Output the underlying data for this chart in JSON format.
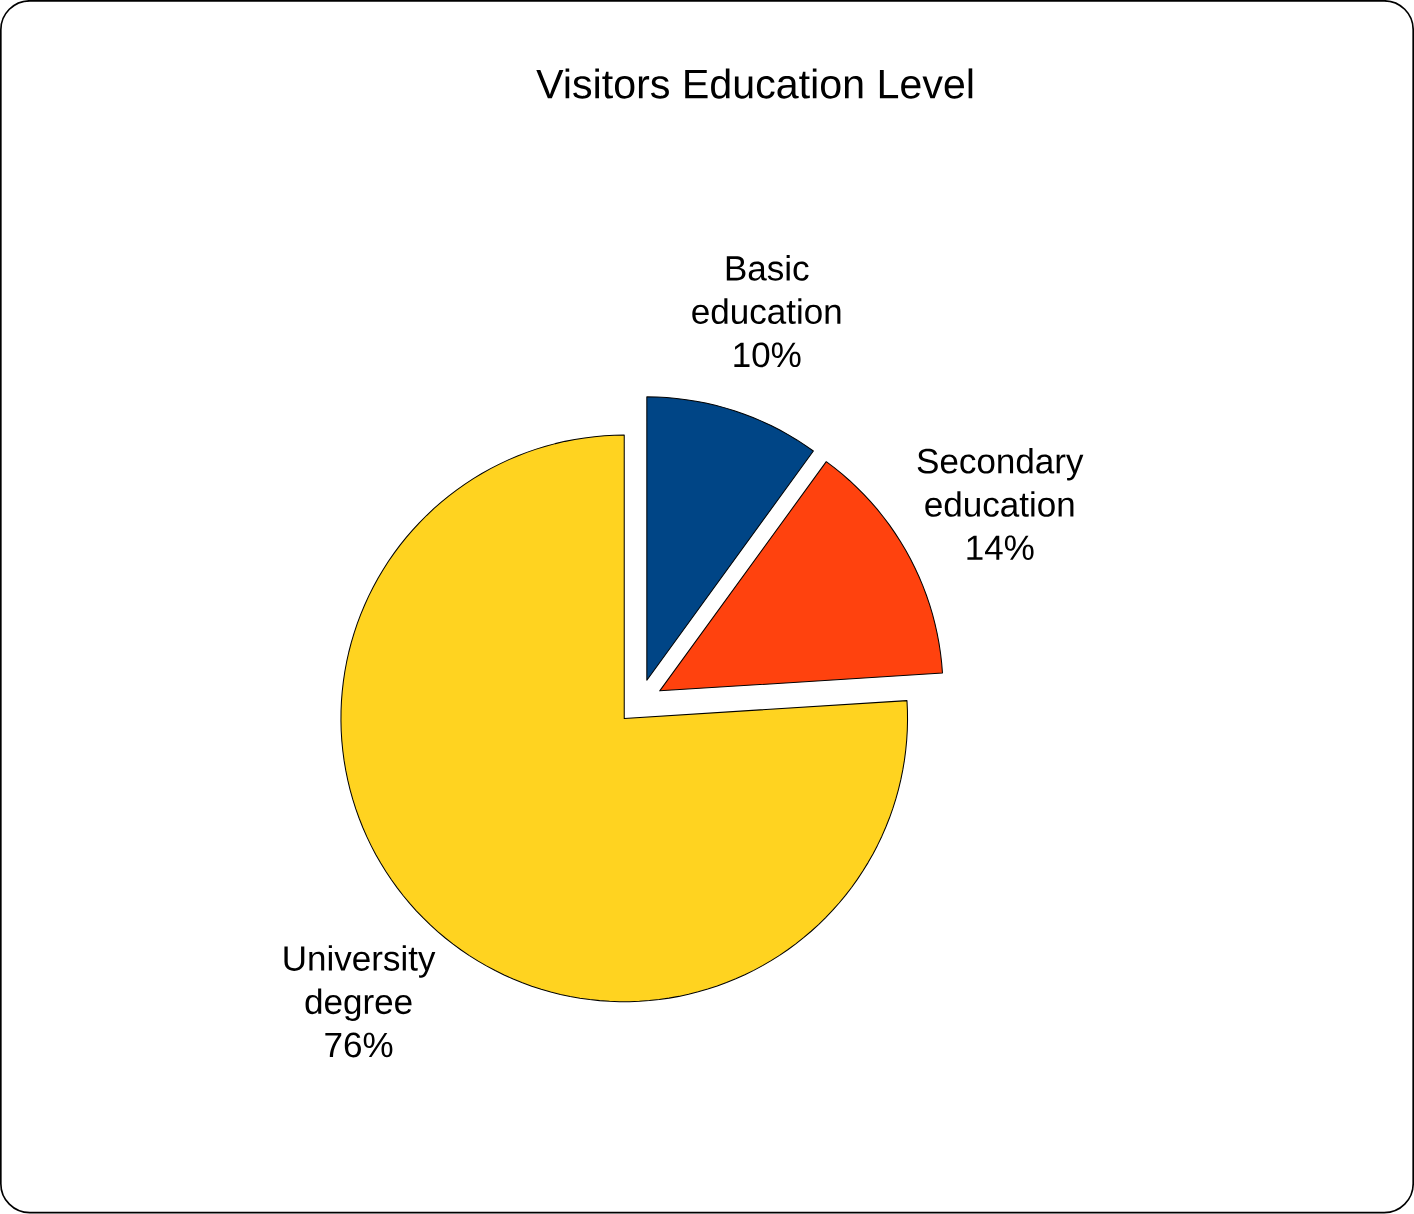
{
  "chart_data": {
    "type": "pie",
    "title": "Visitors Education Level",
    "categories": [
      "Basic education",
      "Secondary education",
      "University degree"
    ],
    "values": [
      10,
      14,
      76
    ],
    "value_labels": [
      "10%",
      "14%",
      "76%"
    ],
    "colors": [
      "#004586",
      "#ff420e",
      "#ffd320"
    ]
  }
}
